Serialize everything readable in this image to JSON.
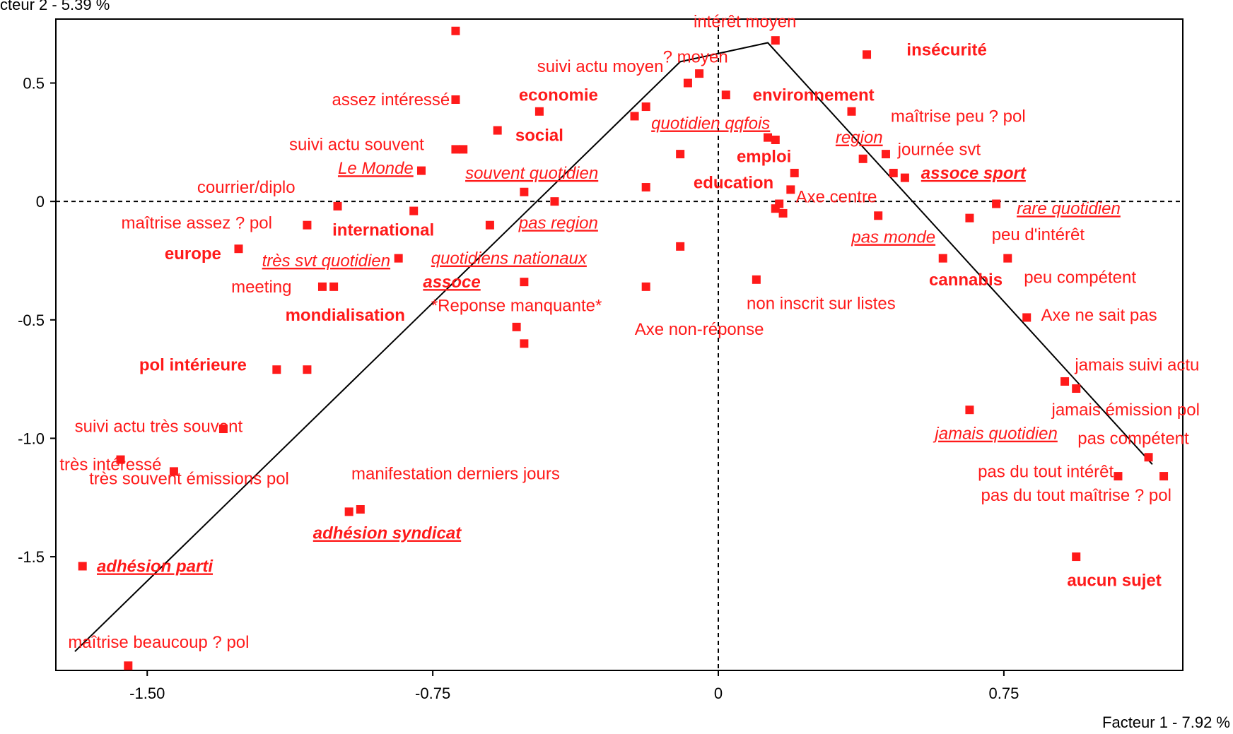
{
  "chart_data": {
    "type": "scatter",
    "xlabel": "Facteur 1  -  7.92 %",
    "ylabel": "cteur 2  -  5.39 %",
    "xlim": [
      -1.74,
      1.22
    ],
    "ylim": [
      -1.98,
      0.77
    ],
    "x_ticks": [
      "-1.50",
      "-0.75",
      "0",
      "0.75"
    ],
    "y_ticks": [
      "0.5",
      "0",
      "-0.5",
      "-1.0",
      "-1.5"
    ],
    "colors": {
      "points": "#ff1a1a",
      "axes": "#000000",
      "curve": "#000000"
    },
    "styles": {
      "bold": "bold",
      "underline_italic": "italic underlined",
      "bold_underline_italic": "bold italic underlined",
      "normal": "normal"
    },
    "points": [
      {
        "x": -0.69,
        "y": 0.72
      },
      {
        "x": -0.69,
        "y": 0.43
      },
      {
        "x": -0.69,
        "y": 0.22
      },
      {
        "x": -0.67,
        "y": 0.22
      },
      {
        "x": -0.58,
        "y": 0.3
      },
      {
        "x": -0.47,
        "y": 0.38
      },
      {
        "x": -0.78,
        "y": 0.13
      },
      {
        "x": -1.0,
        "y": -0.02
      },
      {
        "x": -0.8,
        "y": -0.04
      },
      {
        "x": -1.08,
        "y": -0.1
      },
      {
        "x": -1.26,
        "y": -0.2
      },
      {
        "x": -0.84,
        "y": -0.24
      },
      {
        "x": -1.04,
        "y": -0.36
      },
      {
        "x": -1.01,
        "y": -0.36
      },
      {
        "x": -0.51,
        "y": 0.04
      },
      {
        "x": -0.43,
        "y": 0.0
      },
      {
        "x": -0.6,
        "y": -0.1
      },
      {
        "x": -0.51,
        "y": -0.34
      },
      {
        "x": -0.53,
        "y": -0.53
      },
      {
        "x": -0.51,
        "y": -0.6
      },
      {
        "x": -0.19,
        "y": -0.36
      },
      {
        "x": -0.1,
        "y": -0.19
      },
      {
        "x": -0.19,
        "y": 0.06
      },
      {
        "x": -0.22,
        "y": 0.36
      },
      {
        "x": -0.19,
        "y": 0.4
      },
      {
        "x": -0.1,
        "y": 0.2
      },
      {
        "x": -0.08,
        "y": 0.5
      },
      {
        "x": -0.05,
        "y": 0.54
      },
      {
        "x": 0.02,
        "y": 0.45
      },
      {
        "x": 0.15,
        "y": 0.68
      },
      {
        "x": 0.39,
        "y": 0.62
      },
      {
        "x": 0.35,
        "y": 0.38
      },
      {
        "x": 0.38,
        "y": 0.18
      },
      {
        "x": 0.44,
        "y": 0.2
      },
      {
        "x": 0.46,
        "y": 0.12
      },
      {
        "x": 0.49,
        "y": 0.1
      },
      {
        "x": 0.13,
        "y": 0.27
      },
      {
        "x": 0.15,
        "y": 0.26
      },
      {
        "x": 0.2,
        "y": 0.12
      },
      {
        "x": 0.19,
        "y": 0.05
      },
      {
        "x": 0.16,
        "y": -0.01
      },
      {
        "x": 0.17,
        "y": -0.05
      },
      {
        "x": 0.15,
        "y": -0.03
      },
      {
        "x": 0.42,
        "y": -0.06
      },
      {
        "x": 0.66,
        "y": -0.07
      },
      {
        "x": 0.73,
        "y": -0.01
      },
      {
        "x": 0.59,
        "y": -0.24
      },
      {
        "x": 0.76,
        "y": -0.24
      },
      {
        "x": 0.81,
        "y": -0.49
      },
      {
        "x": 0.1,
        "y": -0.33
      },
      {
        "x": 0.66,
        "y": -0.88
      },
      {
        "x": 0.91,
        "y": -0.76
      },
      {
        "x": 0.94,
        "y": -0.79
      },
      {
        "x": 1.13,
        "y": -1.08
      },
      {
        "x": 1.05,
        "y": -1.16
      },
      {
        "x": 1.17,
        "y": -1.16
      },
      {
        "x": 0.94,
        "y": -1.5
      },
      {
        "x": -1.67,
        "y": -1.54
      },
      {
        "x": -1.57,
        "y": -1.09
      },
      {
        "x": -1.43,
        "y": -1.14
      },
      {
        "x": -1.3,
        "y": -0.96
      },
      {
        "x": -1.16,
        "y": -0.71
      },
      {
        "x": -1.08,
        "y": -0.71
      },
      {
        "x": -0.97,
        "y": -1.31
      },
      {
        "x": -0.94,
        "y": -1.3
      },
      {
        "x": -1.55,
        "y": -1.96
      }
    ],
    "labels": [
      {
        "text": "intérêt moyen",
        "x": 0.07,
        "y": 0.76,
        "style": "normal"
      },
      {
        "text": "insécurité",
        "x": 0.6,
        "y": 0.64,
        "style": "bold"
      },
      {
        "text": "? moyen",
        "x": -0.06,
        "y": 0.61,
        "style": "normal"
      },
      {
        "text": "suivi actu moyen",
        "x": -0.31,
        "y": 0.57,
        "style": "normal"
      },
      {
        "text": "assez intéressé",
        "x": -0.86,
        "y": 0.43,
        "style": "normal"
      },
      {
        "text": "economie",
        "x": -0.42,
        "y": 0.45,
        "style": "bold"
      },
      {
        "text": "environnement",
        "x": 0.25,
        "y": 0.45,
        "style": "bold"
      },
      {
        "text": "maîtrise peu ? pol",
        "x": 0.63,
        "y": 0.36,
        "style": "normal"
      },
      {
        "text": "quotidien qqfois",
        "x": -0.02,
        "y": 0.33,
        "style": "underline_italic"
      },
      {
        "text": "social",
        "x": -0.47,
        "y": 0.28,
        "style": "bold"
      },
      {
        "text": "suivi actu souvent",
        "x": -0.95,
        "y": 0.24,
        "style": "normal"
      },
      {
        "text": "region",
        "x": 0.37,
        "y": 0.27,
        "style": "underline_italic"
      },
      {
        "text": "journée svt",
        "x": 0.58,
        "y": 0.22,
        "style": "normal"
      },
      {
        "text": "emploi",
        "x": 0.12,
        "y": 0.19,
        "style": "bold"
      },
      {
        "text": "Le Monde",
        "x": -0.9,
        "y": 0.14,
        "style": "underline_italic"
      },
      {
        "text": "assoce sport",
        "x": 0.67,
        "y": 0.12,
        "style": "bold_underline_italic"
      },
      {
        "text": "souvent quotidien",
        "x": -0.49,
        "y": 0.12,
        "style": "underline_italic"
      },
      {
        "text": "education",
        "x": 0.04,
        "y": 0.08,
        "style": "bold"
      },
      {
        "text": "courrier/diplo",
        "x": -1.24,
        "y": 0.06,
        "style": "normal"
      },
      {
        "text": "Axe centre",
        "x": 0.31,
        "y": 0.02,
        "style": "normal"
      },
      {
        "text": "rare quotidien",
        "x": 0.92,
        "y": -0.03,
        "style": "underline_italic"
      },
      {
        "text": "maîtrise assez ? pol",
        "x": -1.37,
        "y": -0.09,
        "style": "normal"
      },
      {
        "text": "pas region",
        "x": -0.42,
        "y": -0.09,
        "style": "underline_italic"
      },
      {
        "text": "international",
        "x": -0.88,
        "y": -0.12,
        "style": "bold"
      },
      {
        "text": "peu d'intérêt",
        "x": 0.84,
        "y": -0.14,
        "style": "normal"
      },
      {
        "text": "pas monde",
        "x": 0.46,
        "y": -0.15,
        "style": "underline_italic"
      },
      {
        "text": "europe",
        "x": -1.38,
        "y": -0.22,
        "style": "bold"
      },
      {
        "text": "très svt quotidien",
        "x": -1.03,
        "y": -0.25,
        "style": "underline_italic"
      },
      {
        "text": "quotidiens nationaux",
        "x": -0.55,
        "y": -0.24,
        "style": "underline_italic"
      },
      {
        "text": "assoce",
        "x": -0.7,
        "y": -0.34,
        "style": "bold_underline_italic"
      },
      {
        "text": "peu compétent",
        "x": 0.95,
        "y": -0.32,
        "style": "normal"
      },
      {
        "text": "cannabis",
        "x": 0.65,
        "y": -0.33,
        "style": "bold"
      },
      {
        "text": "meeting",
        "x": -1.2,
        "y": -0.36,
        "style": "normal"
      },
      {
        "text": "*Reponse manquante*",
        "x": -0.53,
        "y": -0.44,
        "style": "normal"
      },
      {
        "text": "non inscrit sur listes",
        "x": 0.27,
        "y": -0.43,
        "style": "normal"
      },
      {
        "text": "mondialisation",
        "x": -0.98,
        "y": -0.48,
        "style": "bold"
      },
      {
        "text": "Axe ne sait pas",
        "x": 1.0,
        "y": -0.48,
        "style": "normal"
      },
      {
        "text": "Axe non-réponse",
        "x": -0.05,
        "y": -0.54,
        "style": "normal"
      },
      {
        "text": "pol intérieure",
        "x": -1.38,
        "y": -0.69,
        "style": "bold"
      },
      {
        "text": "jamais suivi actu",
        "x": 1.1,
        "y": -0.69,
        "style": "normal"
      },
      {
        "text": "suivi actu très souvent",
        "x": -1.47,
        "y": -0.95,
        "style": "normal"
      },
      {
        "text": "jamais émission pol",
        "x": 1.07,
        "y": -0.88,
        "style": "normal"
      },
      {
        "text": "jamais quotidien",
        "x": 0.73,
        "y": -0.98,
        "style": "underline_italic"
      },
      {
        "text": "pas compétent",
        "x": 1.09,
        "y": -1.0,
        "style": "normal"
      },
      {
        "text": "très intéressé",
        "x": -1.73,
        "y": -1.11,
        "style": "normal",
        "anchor": "start"
      },
      {
        "text": "très souvent émissions pol",
        "x": -1.39,
        "y": -1.17,
        "style": "normal"
      },
      {
        "text": "manifestation derniers jours",
        "x": -0.69,
        "y": -1.15,
        "style": "normal"
      },
      {
        "text": "pas du tout intérêt",
        "x": 0.86,
        "y": -1.14,
        "style": "normal"
      },
      {
        "text": "pas du tout maîtrise ? pol",
        "x": 0.94,
        "y": -1.24,
        "style": "normal"
      },
      {
        "text": "adhésion syndicat",
        "x": -0.87,
        "y": -1.4,
        "style": "bold_underline_italic"
      },
      {
        "text": "aucun sujet",
        "x": 1.04,
        "y": -1.6,
        "style": "bold"
      },
      {
        "text": "adhésion parti",
        "x": -1.48,
        "y": -1.54,
        "style": "bold_underline_italic"
      },
      {
        "text": "maîtrise beaucoup ? pol",
        "x": -1.47,
        "y": -1.86,
        "style": "normal"
      }
    ],
    "curve": [
      [
        -1.69,
        -1.9
      ],
      [
        -0.1,
        0.59
      ],
      [
        0.13,
        0.67
      ],
      [
        1.14,
        -1.11
      ]
    ],
    "grid": false
  }
}
